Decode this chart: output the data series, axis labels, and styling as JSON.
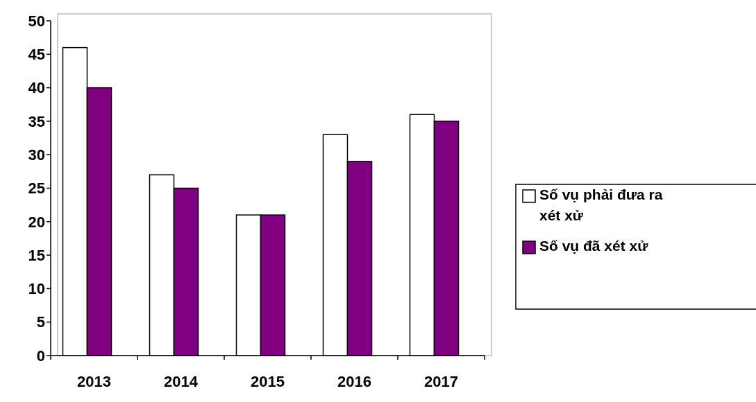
{
  "chart_data": {
    "type": "bar",
    "categories": [
      "2013",
      "2014",
      "2015",
      "2016",
      "2017"
    ],
    "series": [
      {
        "name": "Số vụ phải đưa ra xét xử",
        "color": "#ffffff",
        "values": [
          46,
          27,
          21,
          33,
          36
        ]
      },
      {
        "name": "Số vụ đã xét xử",
        "color": "#800080",
        "values": [
          40,
          25,
          21,
          29,
          35
        ]
      }
    ],
    "ylim": [
      0,
      50
    ],
    "yticks": [
      0,
      5,
      10,
      15,
      20,
      25,
      30,
      35,
      40,
      45,
      50
    ],
    "legend": "right"
  }
}
